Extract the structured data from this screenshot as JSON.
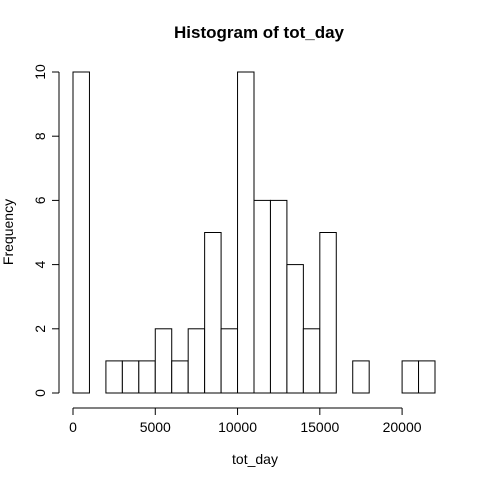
{
  "chart_data": {
    "type": "bar",
    "title": "Histogram of tot_day",
    "xlabel": "tot_day",
    "ylabel": "Frequency",
    "bin_width": 1000,
    "bins": [
      {
        "start": 0,
        "end": 1000,
        "count": 10
      },
      {
        "start": 1000,
        "end": 2000,
        "count": 0
      },
      {
        "start": 2000,
        "end": 3000,
        "count": 1
      },
      {
        "start": 3000,
        "end": 4000,
        "count": 1
      },
      {
        "start": 4000,
        "end": 5000,
        "count": 1
      },
      {
        "start": 5000,
        "end": 6000,
        "count": 2
      },
      {
        "start": 6000,
        "end": 7000,
        "count": 1
      },
      {
        "start": 7000,
        "end": 8000,
        "count": 2
      },
      {
        "start": 8000,
        "end": 9000,
        "count": 5
      },
      {
        "start": 9000,
        "end": 10000,
        "count": 2
      },
      {
        "start": 10000,
        "end": 11000,
        "count": 10
      },
      {
        "start": 11000,
        "end": 12000,
        "count": 6
      },
      {
        "start": 12000,
        "end": 13000,
        "count": 6
      },
      {
        "start": 13000,
        "end": 14000,
        "count": 4
      },
      {
        "start": 14000,
        "end": 15000,
        "count": 2
      },
      {
        "start": 15000,
        "end": 16000,
        "count": 5
      },
      {
        "start": 16000,
        "end": 17000,
        "count": 0
      },
      {
        "start": 17000,
        "end": 18000,
        "count": 1
      },
      {
        "start": 18000,
        "end": 19000,
        "count": 0
      },
      {
        "start": 19000,
        "end": 20000,
        "count": 0
      },
      {
        "start": 20000,
        "end": 21000,
        "count": 1
      },
      {
        "start": 21000,
        "end": 22000,
        "count": 1
      }
    ],
    "xlim": [
      0,
      22000
    ],
    "ylim": [
      0,
      10
    ],
    "x_ticks": [
      0,
      5000,
      10000,
      15000,
      20000
    ],
    "y_ticks": [
      0,
      2,
      4,
      6,
      8,
      10
    ],
    "grid": false,
    "legend": "none",
    "colors": {
      "bar_fill": "#ffffff",
      "bar_stroke": "#000000"
    }
  }
}
